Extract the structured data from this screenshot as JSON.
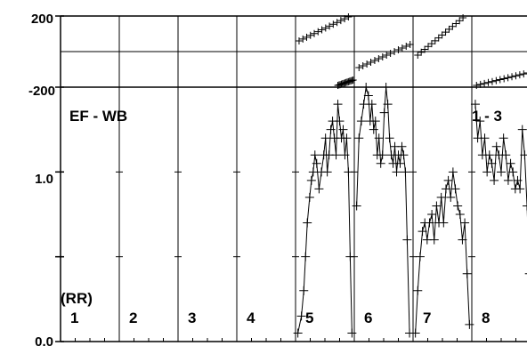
{
  "chart_data": {
    "type": "scatter",
    "title": "",
    "xlabel": "",
    "ylabel": "",
    "colors": {
      "ink": "#000000",
      "background": "#ffffff"
    },
    "top_panel": {
      "ylim": [
        -200,
        200
      ],
      "y_ticks": [
        {
          "value": 200,
          "label": "200"
        },
        {
          "value": -200,
          "label": "-200"
        }
      ],
      "reference_line": 0,
      "segments": [
        {
          "channel": 5,
          "x": [
            0.06,
            0.9
          ],
          "y": [
            60,
            195
          ]
        },
        {
          "channel": 5,
          "x": [
            0.72,
            0.98
          ],
          "y": [
            -190,
            -160
          ]
        },
        {
          "channel": 6,
          "x": [
            0.08,
            0.95
          ],
          "y": [
            -90,
            40
          ]
        },
        {
          "channel": 7,
          "x": [
            0.08,
            0.85
          ],
          "y": [
            -20,
            190
          ]
        },
        {
          "channel": 8,
          "x": [
            0.08,
            0.95
          ],
          "y": [
            -190,
            -120
          ]
        }
      ]
    },
    "bottom_panel": {
      "ylim": [
        0,
        1.5
      ],
      "y_ticks": [
        {
          "value": 1.0,
          "label": "1.0"
        },
        {
          "value": 0.0,
          "label": "0.0"
        }
      ],
      "grid": false,
      "label_left": "EF - WB",
      "label_right": "1 - 3",
      "group_label": "(RR)",
      "channels": [
        "1",
        "2",
        "3",
        "4",
        "5",
        "6",
        "7",
        "8"
      ],
      "series": [
        {
          "channel": 5,
          "x": [
            0.04,
            0.1,
            0.14,
            0.17,
            0.2,
            0.24,
            0.27,
            0.3,
            0.33,
            0.36,
            0.4,
            0.44,
            0.48,
            0.51,
            0.54,
            0.57,
            0.6,
            0.63,
            0.66,
            0.69,
            0.72,
            0.75,
            0.78,
            0.81,
            0.84,
            0.87,
            0.9,
            0.93,
            0.96
          ],
          "y": [
            0.05,
            0.15,
            0.3,
            0.5,
            0.7,
            0.85,
            0.95,
            1.0,
            1.1,
            1.05,
            0.9,
            1.0,
            1.1,
            1.2,
            1.0,
            1.1,
            1.25,
            1.3,
            1.2,
            1.1,
            1.4,
            1.3,
            1.2,
            1.25,
            1.1,
            1.2,
            1.0,
            0.5,
            0.05
          ]
        },
        {
          "channel": 6,
          "x": [
            0.04,
            0.08,
            0.12,
            0.16,
            0.2,
            0.24,
            0.27,
            0.3,
            0.33,
            0.36,
            0.39,
            0.42,
            0.45,
            0.48,
            0.51,
            0.54,
            0.57,
            0.6,
            0.63,
            0.66,
            0.69,
            0.72,
            0.75,
            0.78,
            0.81,
            0.84,
            0.87,
            0.9,
            0.94
          ],
          "y": [
            0.8,
            1.2,
            1.3,
            1.4,
            1.5,
            1.45,
            1.3,
            1.4,
            1.25,
            1.3,
            1.1,
            1.2,
            1.05,
            1.1,
            1.35,
            1.5,
            1.4,
            1.2,
            1.1,
            1.05,
            1.15,
            1.0,
            1.1,
            1.05,
            1.15,
            1.1,
            1.0,
            0.6,
            0.05
          ]
        },
        {
          "channel": 7,
          "x": [
            0.04,
            0.08,
            0.12,
            0.16,
            0.2,
            0.24,
            0.28,
            0.32,
            0.36,
            0.4,
            0.44,
            0.48,
            0.52,
            0.56,
            0.6,
            0.64,
            0.68,
            0.72,
            0.76,
            0.8,
            0.84,
            0.88,
            0.92,
            0.96
          ],
          "y": [
            0.05,
            0.3,
            0.5,
            0.65,
            0.7,
            0.6,
            0.7,
            0.75,
            0.6,
            0.8,
            0.7,
            0.85,
            0.7,
            0.9,
            0.95,
            0.85,
            1.0,
            0.9,
            0.8,
            0.75,
            0.6,
            0.7,
            0.4,
            0.1
          ]
        },
        {
          "channel": 8,
          "x": [
            0.06,
            0.1,
            0.14,
            0.18,
            0.22,
            0.26,
            0.3,
            0.34,
            0.38,
            0.42,
            0.46,
            0.5,
            0.54,
            0.58,
            0.62,
            0.66,
            0.7,
            0.74,
            0.78,
            0.82,
            0.86,
            0.9,
            0.94,
            0.98
          ],
          "y": [
            1.4,
            1.2,
            1.3,
            1.1,
            1.2,
            1.0,
            1.1,
            1.05,
            0.95,
            1.15,
            1.1,
            1.0,
            1.2,
            1.1,
            0.95,
            1.05,
            1.0,
            0.9,
            0.95,
            0.9,
            1.25,
            1.1,
            0.8,
            0.4
          ]
        }
      ]
    }
  }
}
